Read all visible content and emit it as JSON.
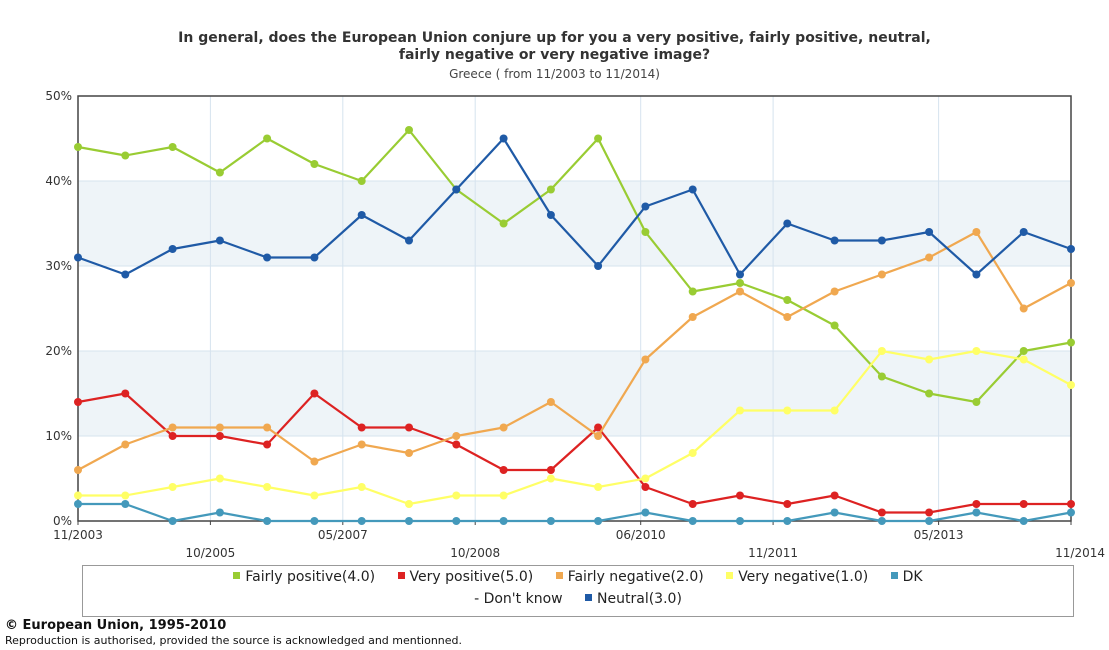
{
  "header": {
    "title_line1": "In general, does the European Union conjure up for you a very positive, fairly positive, neutral,",
    "title_line2": "fairly negative or very negative image?",
    "subtitle": "Greece ( from 11/2003 to 11/2014)"
  },
  "footer": {
    "copyright": "© European Union, 1995-2010",
    "notice": "Reproduction is authorised, provided the source is acknowledged and mentionned."
  },
  "legend": {
    "row1": [
      {
        "label": "Fairly positive(4.0)",
        "color": "#99cc33"
      },
      {
        "label": "Very positive(5.0)",
        "color": "#dd2222"
      },
      {
        "label": "Fairly negative(2.0)",
        "color": "#f0a850"
      },
      {
        "label": "Very negative(1.0)",
        "color": "#ffff66"
      },
      {
        "label": "DK",
        "color": "#4499bb"
      }
    ],
    "row2": [
      {
        "label": "- Don't know",
        "color": null
      },
      {
        "label": "Neutral(3.0)",
        "color": "#1f5aa6"
      }
    ]
  },
  "chart_data": {
    "type": "line",
    "title": "In general, does the European Union conjure up for you a very positive, fairly positive, neutral, fairly negative or very negative image?",
    "subtitle": "Greece ( from 11/2003 to 11/2014)",
    "ylim": [
      0,
      50
    ],
    "y_ticks": [
      "0%",
      "10%",
      "20%",
      "30%",
      "40%",
      "50%"
    ],
    "x_tick_labels": [
      {
        "index": 0,
        "label": "11/2003",
        "row": 1
      },
      {
        "index": 4,
        "label": "10/2005",
        "row": 2
      },
      {
        "index": 8,
        "label": "05/2007",
        "row": 1
      },
      {
        "index": 12,
        "label": "10/2008",
        "row": 2
      },
      {
        "index": 17,
        "label": "06/2010",
        "row": 1
      },
      {
        "index": 21,
        "label": "11/2011",
        "row": 2
      },
      {
        "index": 26,
        "label": "05/2013",
        "row": 1
      },
      {
        "index": 30,
        "label": "11/2014",
        "row": 2
      }
    ],
    "grid": true,
    "legend_position": "bottom",
    "n_points": 31,
    "series": [
      {
        "name": "Fairly positive(4.0)",
        "color": "#99cc33",
        "values": [
          44,
          43,
          44,
          41,
          45,
          42,
          40,
          46,
          39,
          35,
          39,
          45,
          34,
          27,
          28,
          26,
          23,
          17,
          15,
          14,
          20,
          21
        ]
      },
      {
        "name": "Very positive(5.0)",
        "color": "#dd2222",
        "values": [
          14,
          15,
          10,
          10,
          9,
          15,
          11,
          11,
          9,
          6,
          6,
          11,
          4,
          2,
          3,
          2,
          3,
          1,
          1,
          2,
          2,
          2
        ]
      },
      {
        "name": "Fairly negative(2.0)",
        "color": "#f0a850",
        "values": [
          6,
          9,
          11,
          11,
          11,
          7,
          9,
          8,
          10,
          11,
          14,
          10,
          19,
          24,
          27,
          24,
          27,
          29,
          31,
          34,
          25,
          28
        ]
      },
      {
        "name": "Very negative(1.0)",
        "color": "#ffff66",
        "values": [
          3,
          3,
          4,
          5,
          4,
          3,
          4,
          2,
          3,
          3,
          5,
          4,
          5,
          8,
          13,
          13,
          13,
          20,
          19,
          20,
          19,
          16
        ]
      },
      {
        "name": "DK",
        "color": "#4499bb",
        "values": [
          2,
          2,
          0,
          1,
          0,
          0,
          0,
          0,
          0,
          0,
          0,
          0,
          1,
          0,
          0,
          0,
          1,
          0,
          0,
          1,
          0,
          1
        ]
      },
      {
        "name": "Neutral(3.0)",
        "color": "#1f5aa6",
        "values": [
          31,
          29,
          32,
          33,
          31,
          31,
          36,
          33,
          39,
          45,
          36,
          30,
          37,
          39,
          29,
          35,
          33,
          33,
          34,
          29,
          34,
          32
        ]
      }
    ]
  }
}
